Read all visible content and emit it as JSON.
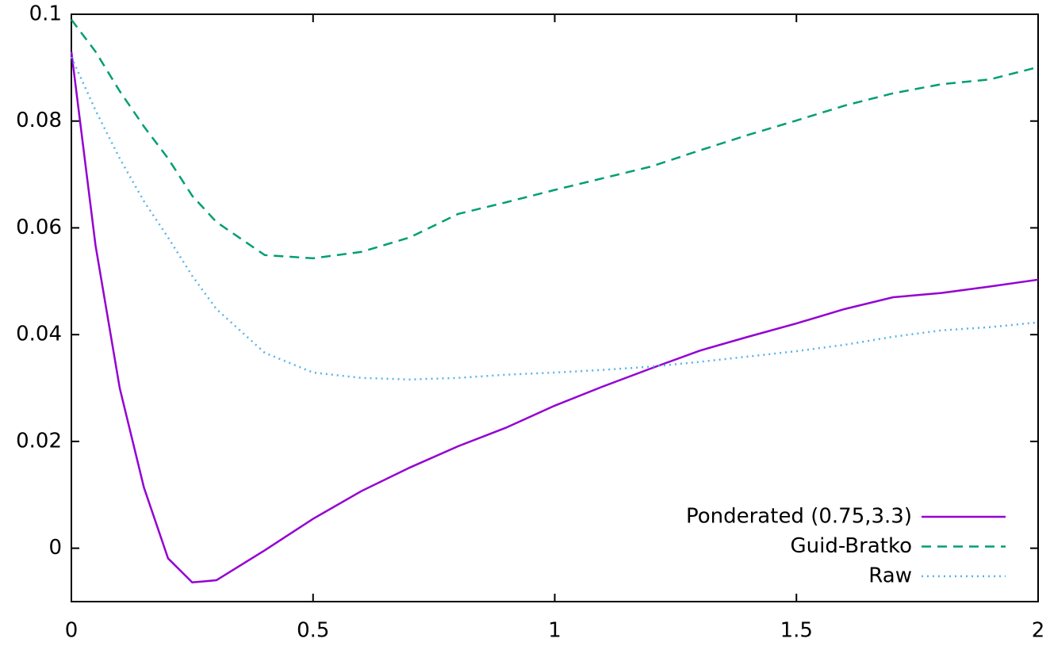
{
  "chart_data": {
    "type": "line",
    "x": [
      0,
      0.05,
      0.1,
      0.15,
      0.2,
      0.25,
      0.3,
      0.4,
      0.5,
      0.6,
      0.7,
      0.8,
      0.9,
      1.0,
      1.1,
      1.2,
      1.3,
      1.4,
      1.5,
      1.6,
      1.7,
      1.8,
      1.9,
      2.0
    ],
    "series": [
      {
        "name": "Ponderated (0.75,3.3)",
        "color": "#9400d3",
        "dash": "solid",
        "values": [
          0.093,
          0.0567,
          0.03,
          0.0114,
          -0.0019,
          -0.0064,
          -0.006,
          -0.0004,
          0.0055,
          0.0107,
          0.0151,
          0.0191,
          0.0226,
          0.0267,
          0.0303,
          0.0337,
          0.037,
          0.0396,
          0.0421,
          0.0448,
          0.047,
          0.0478,
          0.049,
          0.0503
        ]
      },
      {
        "name": "Guid-Bratko",
        "color": "#009e73",
        "dash": "dashed",
        "values": [
          0.099,
          0.093,
          0.0856,
          0.079,
          0.073,
          0.066,
          0.0611,
          0.0549,
          0.0543,
          0.0555,
          0.0582,
          0.0626,
          0.0648,
          0.0671,
          0.0693,
          0.0715,
          0.0745,
          0.0774,
          0.0801,
          0.0829,
          0.0852,
          0.0869,
          0.0878,
          0.0901
        ]
      },
      {
        "name": "Raw",
        "color": "#56b4e9",
        "dash": "dotted",
        "values": [
          0.092,
          0.082,
          0.073,
          0.065,
          0.0582,
          0.051,
          0.0448,
          0.0366,
          0.0329,
          0.0319,
          0.0316,
          0.0319,
          0.0325,
          0.0329,
          0.0334,
          0.034,
          0.0349,
          0.0359,
          0.0369,
          0.0381,
          0.0396,
          0.0408,
          0.0414,
          0.0423
        ]
      }
    ],
    "xlim": [
      0,
      2
    ],
    "xticks": [
      0,
      0.5,
      1,
      1.5,
      2
    ],
    "ylim": [
      -0.01,
      0.1
    ],
    "yticks": [
      0,
      0.02,
      0.04,
      0.06,
      0.08,
      0.1
    ],
    "legend": "bottom-right"
  }
}
